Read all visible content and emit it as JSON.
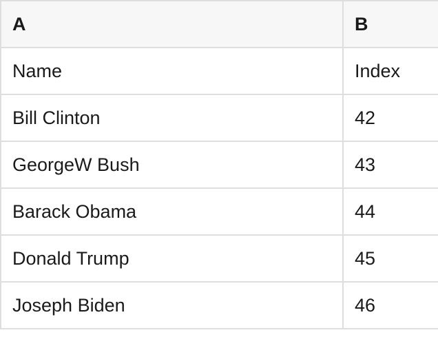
{
  "table": {
    "columns": [
      {
        "label": "A"
      },
      {
        "label": "B"
      }
    ],
    "rows": [
      [
        "Name",
        "Index"
      ],
      [
        "Bill Clinton",
        "42"
      ],
      [
        "GeorgeW Bush",
        "43"
      ],
      [
        "Barack Obama",
        "44"
      ],
      [
        "Donald Trump",
        "45"
      ],
      [
        "Joseph Biden",
        "46"
      ]
    ]
  },
  "colors": {
    "header_bg": "#f7f7f7",
    "border": "#dedede",
    "text": "#1a1a1a",
    "cell_bg": "#ffffff"
  }
}
